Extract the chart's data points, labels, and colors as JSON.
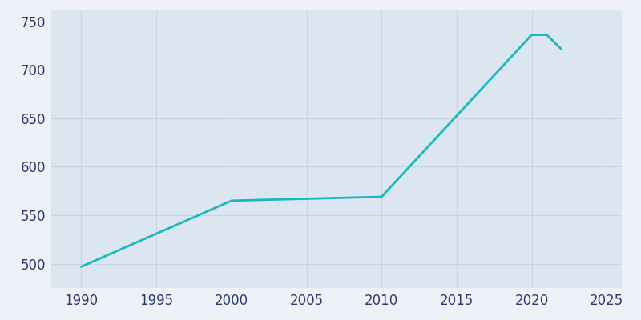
{
  "x": [
    1990,
    2000,
    2005,
    2010,
    2020,
    2021,
    2022
  ],
  "y": [
    497,
    565,
    567,
    569,
    736,
    736,
    721
  ],
  "line_color": "#17b8be",
  "background_color": "#eef1f8",
  "plot_bg_color": "#dce6f0",
  "grid_color": "#c8d4e3",
  "tick_color": "#2b3a6b",
  "xlim": [
    1988,
    2026
  ],
  "ylim": [
    475,
    762
  ],
  "xticks": [
    1990,
    1995,
    2000,
    2005,
    2010,
    2015,
    2020,
    2025
  ],
  "yticks": [
    500,
    550,
    600,
    650,
    700,
    750
  ],
  "line_width": 2.0,
  "figsize": [
    8.0,
    4.0
  ],
  "dpi": 100,
  "tick_labelsize": 12
}
